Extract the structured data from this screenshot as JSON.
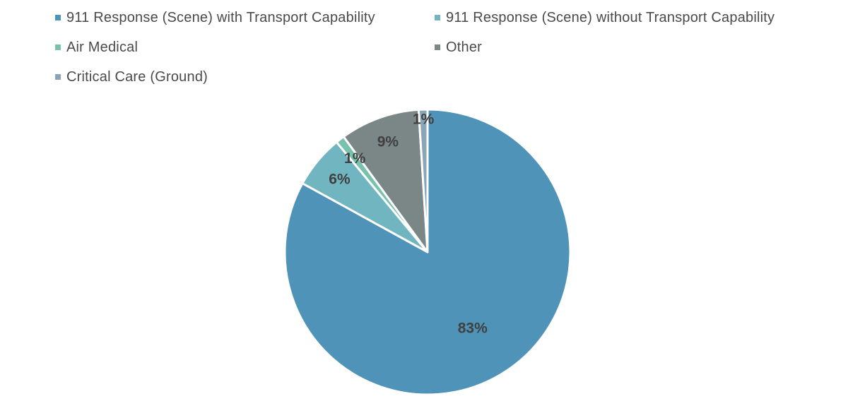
{
  "chart_data": {
    "type": "pie",
    "title": "",
    "legend_position": "top",
    "categories": [
      "911 Response (Scene) with Transport Capability",
      "911 Response (Scene) without Transport Capability",
      "Air Medical",
      "Other",
      "Critical Care (Ground)"
    ],
    "values": [
      83,
      6,
      1,
      9,
      1
    ],
    "data_labels": [
      "83%",
      "6%",
      "1%",
      "9%",
      "1%"
    ],
    "colors": [
      "#4f94b8",
      "#70b5bf",
      "#78c2ad",
      "#7b8787",
      "#8aa6b5"
    ]
  }
}
